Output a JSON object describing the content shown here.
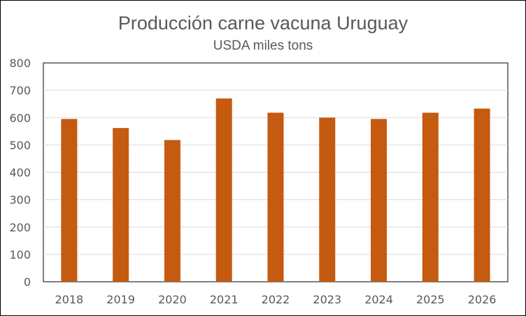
{
  "chart_data": {
    "type": "bar",
    "title": "Producción carne vacuna Uruguay",
    "subtitle": "USDA miles tons",
    "xlabel": "",
    "ylabel": "",
    "categories": [
      "2018",
      "2019",
      "2020",
      "2021",
      "2022",
      "2023",
      "2024",
      "2025",
      "2026"
    ],
    "values": [
      595,
      562,
      518,
      670,
      618,
      600,
      595,
      618,
      633
    ],
    "ylim": [
      0,
      800
    ],
    "yticks": [
      "0",
      "100",
      "200",
      "300",
      "400",
      "500",
      "600",
      "700",
      "800"
    ],
    "grid": true,
    "legend": "none",
    "bar_color": "#C55A11"
  }
}
